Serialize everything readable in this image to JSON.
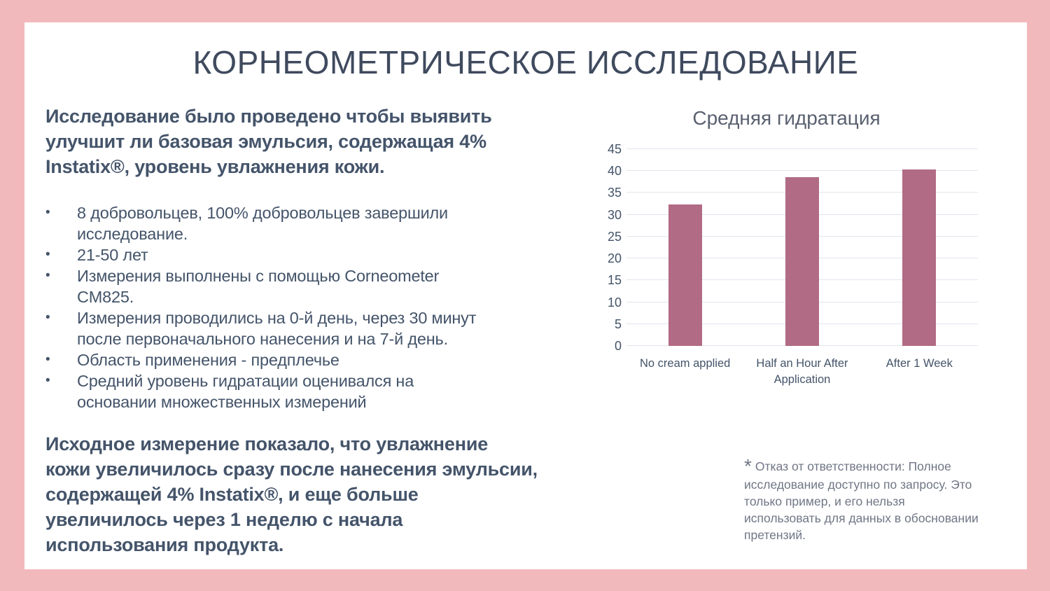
{
  "colors": {
    "frame": "#f2b9bd",
    "background": "#ffffff",
    "title_text": "#3f4a5e",
    "body_text": "#44546a",
    "chart_title_text": "#59606f",
    "muted_text": "#6f7685",
    "gridline": "#e2e5ed",
    "bar": "#b16b84"
  },
  "slide": {
    "title": "КОРНЕОМЕТРИЧЕСКОЕ ИССЛЕДОВАНИЕ",
    "intro": "Исследование было проведено чтобы выявить\nулучшит ли базовая эмульсия, содержащая 4%\nInstatix®, уровень увлажнения кожи.",
    "bullet_char": "•",
    "bullets": [
      "8 добровольцев, 100% добровольцев завершили\nисследование.",
      "21-50 лет",
      "Измерения выполнены с помощью Corneometer\nCM825.",
      "Измерения проводились на 0-й день, через 30 минут\nпосле первоначального нанесения и на 7-й день.",
      "Область применения - предплечье",
      "Средний уровень гидратации оценивался на\nосновании множественных измерений"
    ],
    "conclusion": "Исходное измерение показало, что увлажнение\nкожи увеличилось сразу после нанесения эмульсии,\nсодержащей 4% Instatix®, и еще больше\nувеличилось через 1 неделю с начала\nиспользования продукта.",
    "disclaimer_mark": "*",
    "disclaimer": "Отказ от ответственности: Полное\nисследование доступно по запросу. Это\nтолько пример, и его нельзя\nиспользовать для данных в обосновании\nпретензий."
  },
  "chart_data": {
    "type": "bar",
    "title": "Средняя гидратация",
    "categories": [
      "No cream applied",
      "Half an Hour After Application",
      "After 1 Week"
    ],
    "values": [
      32.4,
      38.6,
      40.3
    ],
    "xlabel": "",
    "ylabel": "",
    "ylim": [
      0,
      45
    ],
    "ytick_step": 5,
    "grid": true,
    "legend": false,
    "bar_color": "#b16b84"
  }
}
